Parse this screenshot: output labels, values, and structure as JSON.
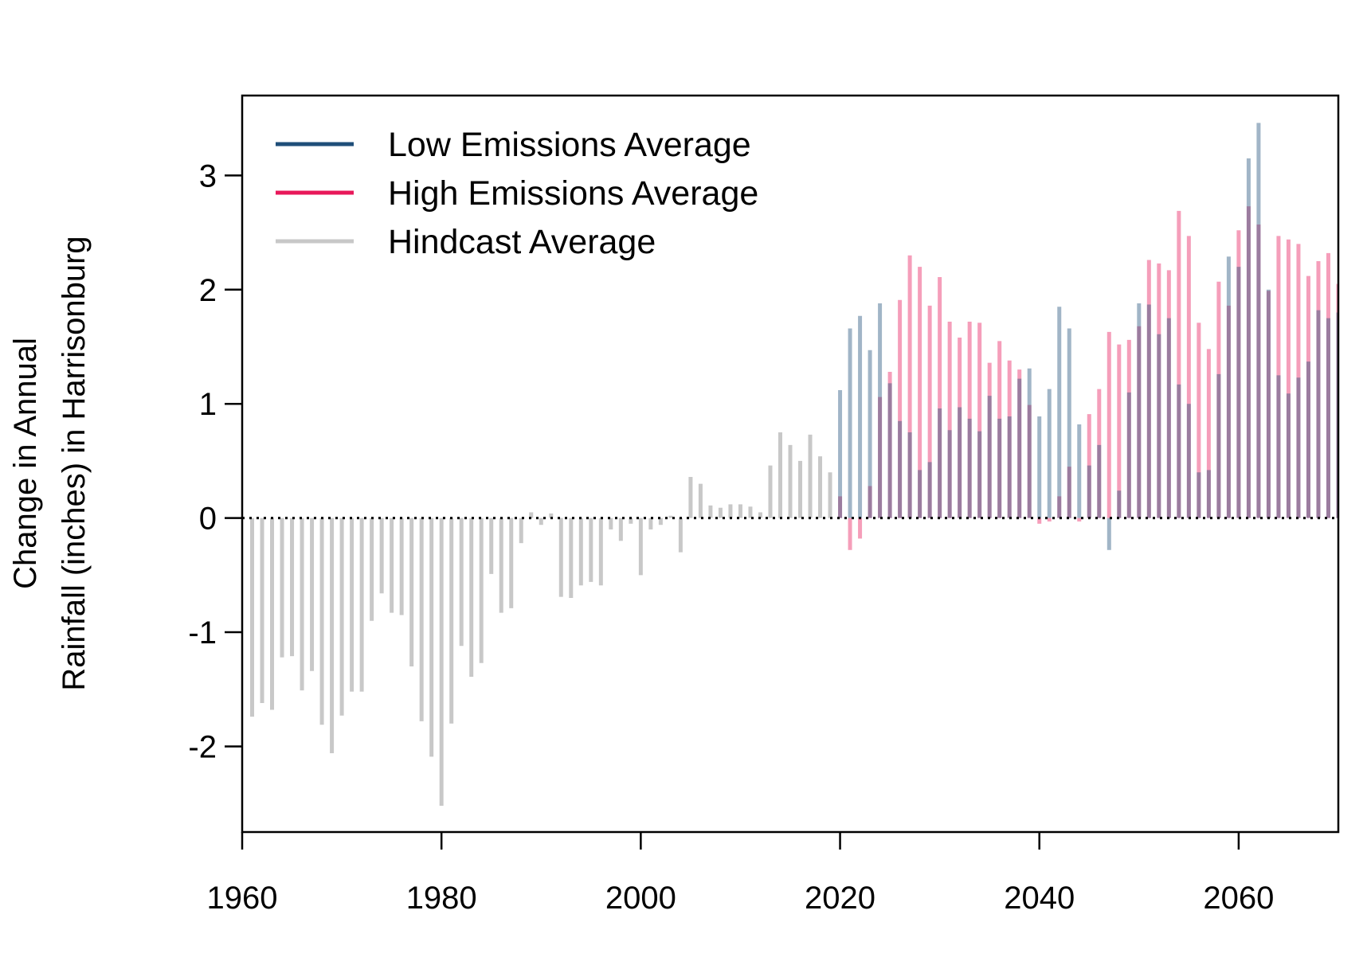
{
  "chart_data": {
    "type": "bar",
    "title": "",
    "xlabel": "",
    "ylabel_lines": [
      "Change in Annual",
      "Rainfall (inches) in Harrisonburg"
    ],
    "xlim": [
      1960,
      2070
    ],
    "ylim": [
      -2.75,
      3.7
    ],
    "x_ticks": [
      1960,
      1980,
      2000,
      2020,
      2040,
      2060
    ],
    "y_ticks": [
      -2,
      -1,
      0,
      1,
      2,
      3
    ],
    "reference_line": 0,
    "grid": false,
    "legend_position": "top-left",
    "series": [
      {
        "name": "Low Emissions Average",
        "color": "#1f4e79",
        "x": [
          2020,
          2021,
          2022,
          2023,
          2024,
          2025,
          2026,
          2027,
          2028,
          2029,
          2030,
          2031,
          2032,
          2033,
          2034,
          2035,
          2036,
          2037,
          2038,
          2039,
          2040,
          2041,
          2042,
          2043,
          2044,
          2045,
          2046,
          2047,
          2048,
          2049,
          2050,
          2051,
          2052,
          2053,
          2054,
          2055,
          2056,
          2057,
          2058,
          2059,
          2060,
          2061,
          2062,
          2063,
          2064,
          2065,
          2066,
          2067,
          2068,
          2069,
          2070
        ],
        "values": [
          1.12,
          1.66,
          1.77,
          1.47,
          1.88,
          1.18,
          0.85,
          0.75,
          0.42,
          0.49,
          0.96,
          0.77,
          0.97,
          0.87,
          0.76,
          1.07,
          0.87,
          0.89,
          1.22,
          1.31,
          0.89,
          1.13,
          1.85,
          1.66,
          0.82,
          0.46,
          0.64,
          -0.28,
          0.24,
          1.1,
          1.88,
          1.87,
          1.61,
          1.75,
          1.17,
          1.0,
          0.4,
          0.42,
          1.26,
          2.29,
          2.2,
          3.15,
          3.46,
          2.0,
          1.25,
          1.09,
          1.23,
          1.37,
          1.82,
          1.75,
          1.8
        ]
      },
      {
        "name": "High Emissions Average",
        "color": "#e8185a",
        "x": [
          2020,
          2021,
          2022,
          2023,
          2024,
          2025,
          2026,
          2027,
          2028,
          2029,
          2030,
          2031,
          2032,
          2033,
          2034,
          2035,
          2036,
          2037,
          2038,
          2039,
          2040,
          2041,
          2042,
          2043,
          2044,
          2045,
          2046,
          2047,
          2048,
          2049,
          2050,
          2051,
          2052,
          2053,
          2054,
          2055,
          2056,
          2057,
          2058,
          2059,
          2060,
          2061,
          2062,
          2063,
          2064,
          2065,
          2066,
          2067,
          2068,
          2069,
          2070
        ],
        "values": [
          0.19,
          -0.28,
          -0.18,
          0.28,
          1.06,
          1.28,
          1.91,
          2.3,
          2.2,
          1.86,
          2.11,
          1.72,
          1.58,
          1.72,
          1.71,
          1.36,
          1.55,
          1.38,
          1.3,
          0.99,
          -0.05,
          -0.03,
          0.19,
          0.45,
          -0.03,
          0.91,
          1.13,
          1.63,
          1.52,
          1.56,
          1.68,
          2.26,
          2.23,
          2.17,
          2.69,
          2.47,
          1.71,
          1.48,
          2.07,
          1.86,
          2.52,
          2.73,
          2.57,
          1.99,
          2.47,
          2.44,
          2.4,
          2.12,
          2.25,
          2.32,
          2.05
        ]
      },
      {
        "name": "Hindcast Average",
        "color": "#c8c8c8",
        "x": [
          1961,
          1962,
          1963,
          1964,
          1965,
          1966,
          1967,
          1968,
          1969,
          1970,
          1971,
          1972,
          1973,
          1974,
          1975,
          1976,
          1977,
          1978,
          1979,
          1980,
          1981,
          1982,
          1983,
          1984,
          1985,
          1986,
          1987,
          1988,
          1989,
          1990,
          1991,
          1992,
          1993,
          1994,
          1995,
          1996,
          1997,
          1998,
          1999,
          2000,
          2001,
          2002,
          2003,
          2004,
          2005,
          2006,
          2007,
          2008,
          2009,
          2010,
          2011,
          2012,
          2013,
          2014,
          2015,
          2016,
          2017,
          2018,
          2019
        ],
        "values": [
          -1.74,
          -1.62,
          -1.68,
          -1.22,
          -1.21,
          -1.51,
          -1.34,
          -1.81,
          -2.06,
          -1.73,
          -1.52,
          -1.52,
          -0.9,
          -0.66,
          -0.83,
          -0.85,
          -1.3,
          -1.78,
          -2.09,
          -2.52,
          -1.8,
          -1.12,
          -1.39,
          -1.27,
          -0.49,
          -0.83,
          -0.79,
          -0.22,
          0.05,
          -0.06,
          0.04,
          -0.69,
          -0.7,
          -0.59,
          -0.56,
          -0.59,
          -0.1,
          -0.2,
          -0.05,
          -0.5,
          -0.1,
          -0.06,
          0.02,
          -0.3,
          0.36,
          0.3,
          0.11,
          0.09,
          0.12,
          0.12,
          0.1,
          0.05,
          0.46,
          0.75,
          0.64,
          0.5,
          0.73,
          0.54,
          0.4
        ]
      }
    ]
  }
}
